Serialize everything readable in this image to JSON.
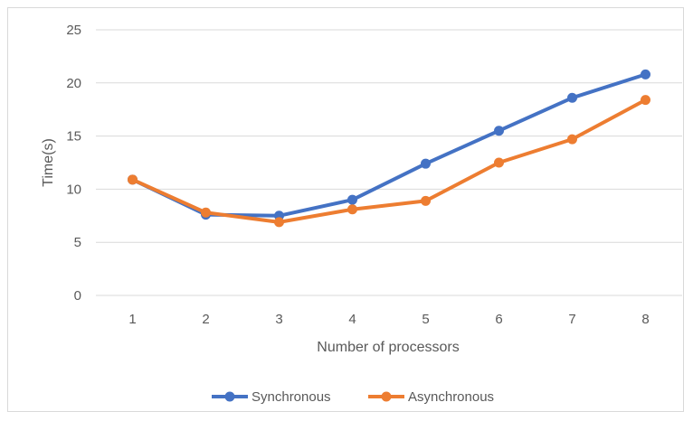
{
  "chart_data": {
    "type": "line",
    "title": "",
    "xlabel": "Number of processors",
    "ylabel": "Time(s)",
    "categories": [
      "1",
      "2",
      "3",
      "4",
      "5",
      "6",
      "7",
      "8"
    ],
    "ylim": [
      0,
      25
    ],
    "yticks": [
      "0",
      "5",
      "10",
      "15",
      "20",
      "25"
    ],
    "grid": "horizontal",
    "legend_position": "bottom",
    "series": [
      {
        "name": "Synchronous",
        "color": "#4472c4",
        "values": [
          10.9,
          7.6,
          7.5,
          9.0,
          12.4,
          15.5,
          18.6,
          20.8
        ]
      },
      {
        "name": "Asynchronous",
        "color": "#ed7d31",
        "values": [
          10.9,
          7.8,
          6.9,
          8.1,
          8.9,
          12.5,
          14.7,
          18.4
        ]
      }
    ]
  }
}
